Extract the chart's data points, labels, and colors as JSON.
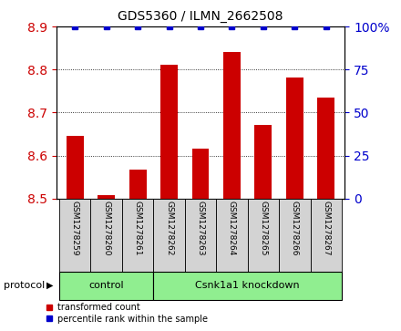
{
  "title": "GDS5360 / ILMN_2662508",
  "samples": [
    "GSM1278259",
    "GSM1278260",
    "GSM1278261",
    "GSM1278262",
    "GSM1278263",
    "GSM1278264",
    "GSM1278265",
    "GSM1278266",
    "GSM1278267"
  ],
  "bar_values": [
    8.645,
    8.507,
    8.567,
    8.812,
    8.617,
    8.84,
    8.672,
    8.782,
    8.735
  ],
  "percentile_values": [
    100,
    100,
    100,
    100,
    100,
    100,
    100,
    100,
    100
  ],
  "bar_bottom": 8.5,
  "ylim": [
    8.5,
    8.9
  ],
  "y2lim": [
    0,
    100
  ],
  "yticks": [
    8.5,
    8.6,
    8.7,
    8.8,
    8.9
  ],
  "y2ticks": [
    0,
    25,
    50,
    75,
    100
  ],
  "y2ticklabels": [
    "0",
    "25",
    "50",
    "75",
    "100%"
  ],
  "bar_color": "#cc0000",
  "dot_color": "#0000cc",
  "n_control": 3,
  "n_knockdown": 6,
  "control_label": "control",
  "knockdown_label": "Csnk1a1 knockdown",
  "protocol_label": "protocol",
  "legend_bar_label": "transformed count",
  "legend_dot_label": "percentile rank within the sample",
  "group_color": "#90ee90",
  "left_tick_color": "#cc0000",
  "right_tick_color": "#0000cc",
  "tick_area_bg": "#d3d3d3",
  "white": "#ffffff",
  "black": "#000000"
}
